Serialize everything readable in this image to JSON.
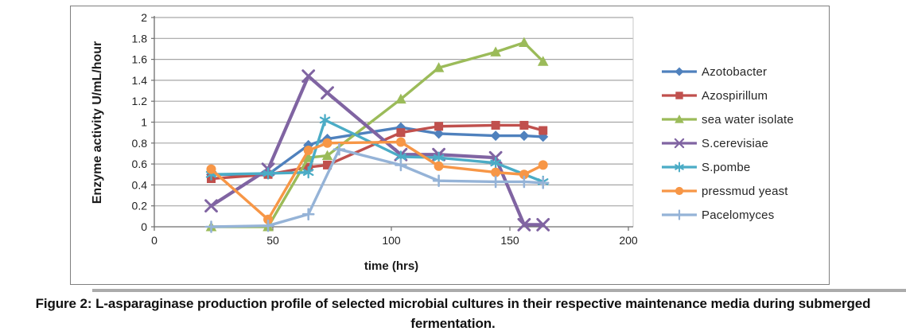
{
  "figure": {
    "caption_line1": "Figure 2: L-asparaginase production profile of selected microbial cultures in their respective maintenance media during submerged",
    "caption_line2": "fermentation."
  },
  "chart_data": {
    "type": "line",
    "title": "",
    "xlabel": "time (hrs)",
    "ylabel": "Enzyme activity U/mL/hour",
    "xlim": [
      0,
      200
    ],
    "ylim": [
      0,
      2
    ],
    "xticks": [
      0,
      50,
      100,
      150,
      200
    ],
    "yticks": [
      0,
      0.2,
      0.4,
      0.6,
      0.8,
      1,
      1.2,
      1.4,
      1.6,
      1.8,
      2
    ],
    "ytick_labels": [
      "0",
      "0.2",
      "0.4",
      "0.6",
      "0.8",
      "1",
      "1.2",
      "1.4",
      "1.6",
      "1.8",
      "2"
    ],
    "grid": "horizontal-only",
    "legend_position": "right",
    "gridline_color": "#a6a6a6",
    "axis_color": "#6e6e6e",
    "series": [
      {
        "name": "Azotobacter",
        "color": "#4F81BD",
        "marker": "diamond",
        "points": [
          [
            24,
            0.5
          ],
          [
            48,
            0.5
          ],
          [
            65,
            0.78
          ],
          [
            73,
            0.84
          ],
          [
            104,
            0.95
          ],
          [
            120,
            0.89
          ],
          [
            144,
            0.87
          ],
          [
            156,
            0.87
          ],
          [
            164,
            0.86
          ]
        ]
      },
      {
        "name": "Azospirillum",
        "color": "#C0504D",
        "marker": "square",
        "points": [
          [
            24,
            0.46
          ],
          [
            48,
            0.5
          ],
          [
            65,
            0.57
          ],
          [
            73,
            0.59
          ],
          [
            104,
            0.9
          ],
          [
            120,
            0.96
          ],
          [
            144,
            0.97
          ],
          [
            156,
            0.97
          ],
          [
            164,
            0.92
          ]
        ]
      },
      {
        "name": "sea water isolate",
        "color": "#9BBB59",
        "marker": "triangle",
        "points": [
          [
            24,
            0
          ],
          [
            48,
            0
          ],
          [
            65,
            0.66
          ],
          [
            73,
            0.68
          ],
          [
            104,
            1.22
          ],
          [
            120,
            1.52
          ],
          [
            144,
            1.67
          ],
          [
            156,
            1.76
          ],
          [
            164,
            1.58
          ]
        ]
      },
      {
        "name": "S.cerevisiae",
        "color": "#8064A2",
        "marker": "x",
        "points": [
          [
            24,
            0.2
          ],
          [
            48,
            0.55
          ],
          [
            65,
            1.44
          ],
          [
            73,
            1.28
          ],
          [
            104,
            0.69
          ],
          [
            120,
            0.69
          ],
          [
            144,
            0.66
          ],
          [
            156,
            0.02
          ],
          [
            164,
            0.02
          ]
        ]
      },
      {
        "name": "S.pombe",
        "color": "#4BACC6",
        "marker": "asterisk",
        "points": [
          [
            24,
            0.5
          ],
          [
            48,
            0.51
          ],
          [
            65,
            0.52
          ],
          [
            72,
            1.02
          ],
          [
            104,
            0.67
          ],
          [
            120,
            0.66
          ],
          [
            144,
            0.61
          ],
          [
            164,
            0.43
          ]
        ]
      },
      {
        "name": "pressmud yeast",
        "color": "#F79646",
        "marker": "circle",
        "points": [
          [
            24,
            0.55
          ],
          [
            48,
            0.07
          ],
          [
            65,
            0.73
          ],
          [
            73,
            0.8
          ],
          [
            104,
            0.81
          ],
          [
            120,
            0.58
          ],
          [
            144,
            0.52
          ],
          [
            156,
            0.5
          ],
          [
            164,
            0.59
          ]
        ]
      },
      {
        "name": "Pacelomyces",
        "color": "#95B3D7",
        "marker": "plus",
        "points": [
          [
            24,
            0
          ],
          [
            48,
            0.01
          ],
          [
            65,
            0.12
          ],
          [
            78,
            0.74
          ],
          [
            104,
            0.59
          ],
          [
            120,
            0.44
          ],
          [
            144,
            0.43
          ],
          [
            156,
            0.43
          ],
          [
            164,
            0.42
          ]
        ]
      }
    ]
  }
}
